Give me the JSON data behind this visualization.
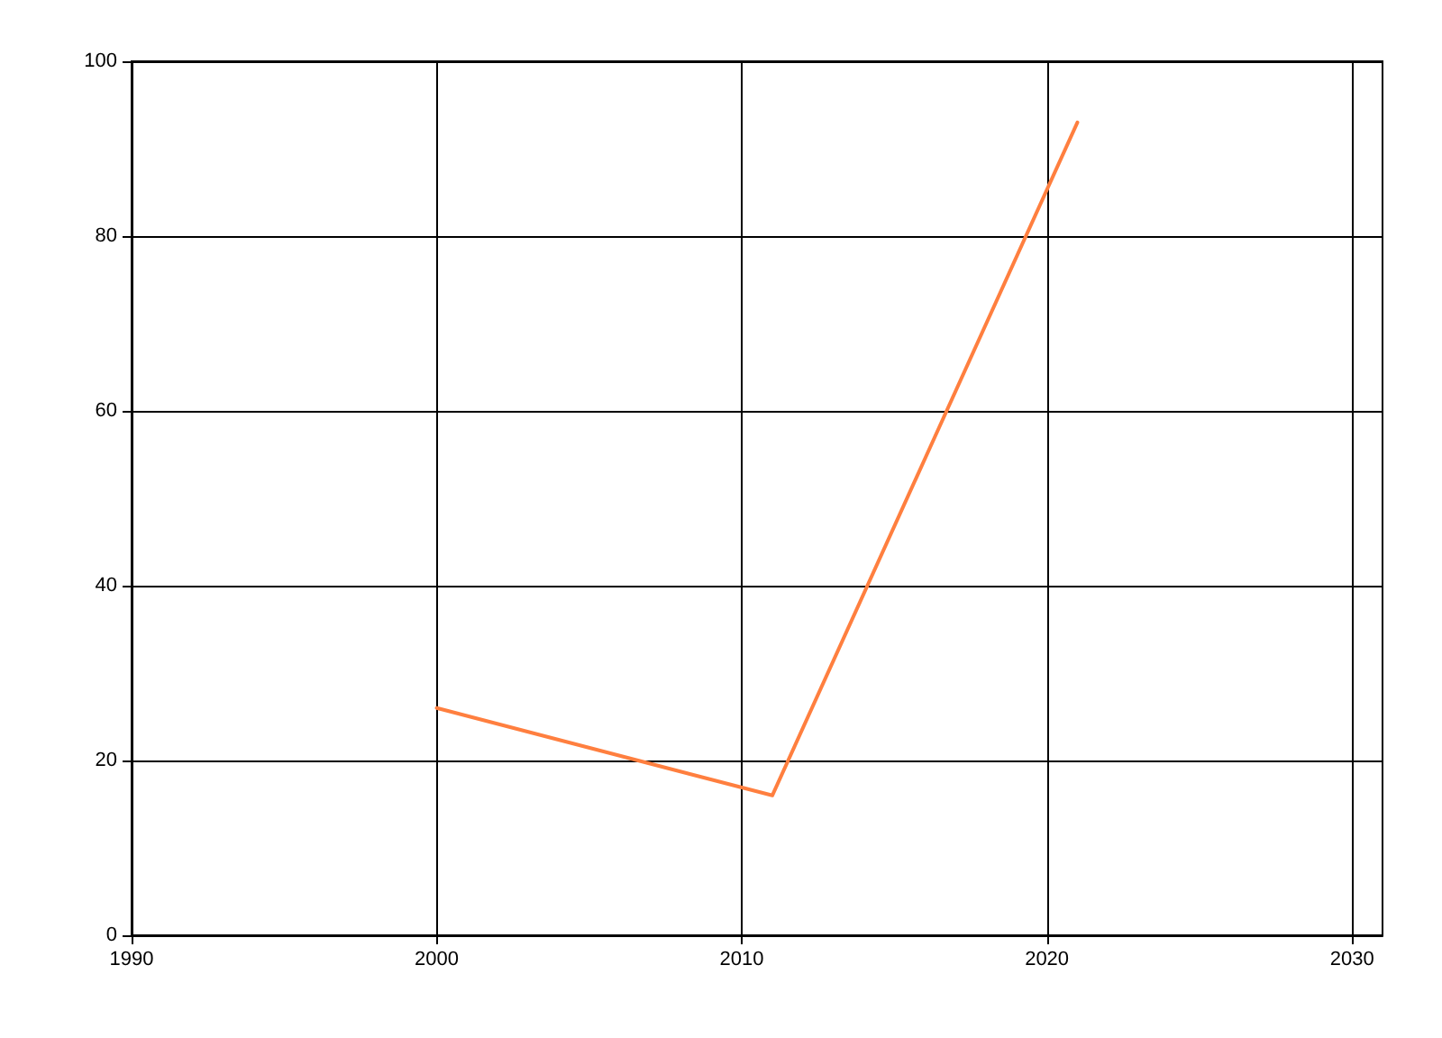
{
  "chart_data": {
    "type": "line",
    "x": [
      2000,
      2011,
      2021
    ],
    "series": [
      {
        "color": "#ff7f3f",
        "values": [
          26,
          16,
          93
        ]
      }
    ],
    "xlim": [
      1990,
      2031
    ],
    "xticks": [
      1990,
      2000,
      2010,
      2020,
      2030
    ],
    "ylim": [
      0,
      100
    ],
    "yticks": [
      0,
      20,
      40,
      60,
      80,
      100
    ],
    "grid": true,
    "marker": "none",
    "line_style": "solid"
  }
}
